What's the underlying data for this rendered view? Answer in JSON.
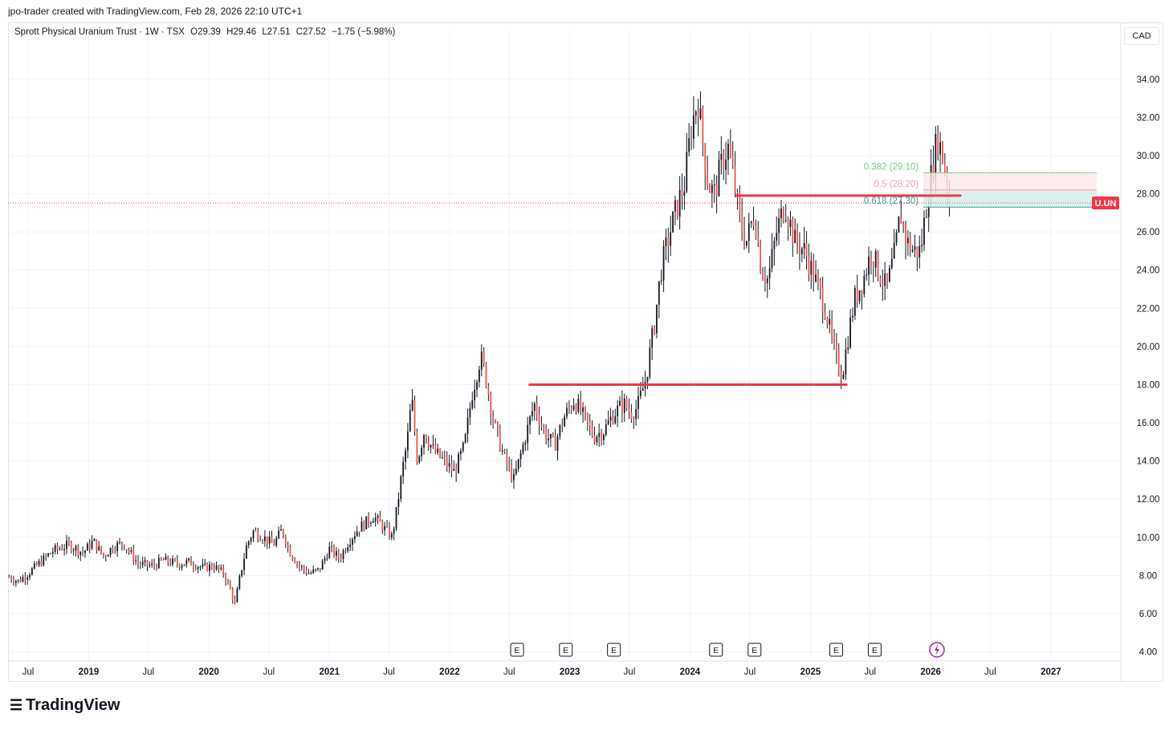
{
  "header": {
    "creator_text": "jpo-trader created with TradingView.com, Feb 28, 2026 22:10 UTC+1"
  },
  "legend": {
    "symbol_title": "Sprott Physical Uranium Trust · 1W · TSX",
    "open": "O29.39",
    "high": "H29.46",
    "low": "L27.51",
    "close": "C27.52",
    "change": "−1.75 (−5.98%)"
  },
  "currency_label": "CAD",
  "price_tag": {
    "label": "U.UN",
    "value": 27.52,
    "color": "#f23645"
  },
  "brand": {
    "name": "TradingView",
    "logo_icon": "tradingview-logo-icon"
  },
  "colors": {
    "up": "#26a69a",
    "down": "#ef5350",
    "candle": "#131722",
    "drawing": "#f23645",
    "grid": "#f0f3fa"
  },
  "chart_data": {
    "type": "candlestick",
    "interval": "1W",
    "y_axis": {
      "ticks": [
        4,
        6,
        8,
        10,
        12,
        14,
        16,
        18,
        20,
        22,
        24,
        26,
        28,
        30,
        32,
        34
      ],
      "range": [
        3.6,
        35.8
      ],
      "position": "right"
    },
    "x_axis": {
      "range": [
        "2018-05-01",
        "2027-07-30"
      ],
      "ticks": [
        {
          "label": "Jul",
          "date": "2018-07-01"
        },
        {
          "label": "2019",
          "date": "2019-01-01"
        },
        {
          "label": "Jul",
          "date": "2019-07-01"
        },
        {
          "label": "2020",
          "date": "2020-01-01"
        },
        {
          "label": "Jul",
          "date": "2020-07-01"
        },
        {
          "label": "2021",
          "date": "2021-01-01"
        },
        {
          "label": "Jul",
          "date": "2021-07-01"
        },
        {
          "label": "2022",
          "date": "2022-01-01"
        },
        {
          "label": "Jul",
          "date": "2022-07-01"
        },
        {
          "label": "2023",
          "date": "2023-01-01"
        },
        {
          "label": "Jul",
          "date": "2023-07-01"
        },
        {
          "label": "2024",
          "date": "2024-01-01"
        },
        {
          "label": "Jul",
          "date": "2024-07-01"
        },
        {
          "label": "2025",
          "date": "2025-01-01"
        },
        {
          "label": "Jul",
          "date": "2025-07-01"
        },
        {
          "label": "2026",
          "date": "2026-01-01"
        },
        {
          "label": "Jul",
          "date": "2026-07-01"
        },
        {
          "label": "2027",
          "date": "2027-01-01"
        }
      ]
    },
    "grid": true,
    "price_path": [
      [
        "2018-05-04",
        7.9
      ],
      [
        "2018-06-01",
        7.7
      ],
      [
        "2018-07-01",
        8.1
      ],
      [
        "2018-08-01",
        8.6
      ],
      [
        "2018-09-15",
        9.3
      ],
      [
        "2018-11-01",
        9.6
      ],
      [
        "2018-12-15",
        9.2
      ],
      [
        "2019-01-15",
        9.8
      ],
      [
        "2019-02-15",
        9.0
      ],
      [
        "2019-03-15",
        9.5
      ],
      [
        "2019-04-15",
        9.7
      ],
      [
        "2019-06-01",
        8.6
      ],
      [
        "2019-07-15",
        8.5
      ],
      [
        "2019-08-15",
        8.8
      ],
      [
        "2019-10-01",
        8.6
      ],
      [
        "2019-11-01",
        8.7
      ],
      [
        "2019-12-15",
        8.4
      ],
      [
        "2020-01-15",
        8.5
      ],
      [
        "2020-02-15",
        8.1
      ],
      [
        "2020-03-05",
        7.3
      ],
      [
        "2020-03-20",
        6.5
      ],
      [
        "2020-04-05",
        8.0
      ],
      [
        "2020-04-25",
        9.6
      ],
      [
        "2020-05-15",
        10.3
      ],
      [
        "2020-06-15",
        10.0
      ],
      [
        "2020-07-15",
        9.6
      ],
      [
        "2020-08-10",
        10.4
      ],
      [
        "2020-09-01",
        9.3
      ],
      [
        "2020-10-01",
        8.5
      ],
      [
        "2020-11-01",
        8.1
      ],
      [
        "2020-12-01",
        8.3
      ],
      [
        "2021-01-01",
        9.4
      ],
      [
        "2021-02-01",
        8.9
      ],
      [
        "2021-03-01",
        9.8
      ],
      [
        "2021-04-01",
        10.5
      ],
      [
        "2021-05-15",
        11.1
      ],
      [
        "2021-06-15",
        10.5
      ],
      [
        "2021-07-10",
        10.0
      ],
      [
        "2021-07-25",
        11.5
      ],
      [
        "2021-08-10",
        13.5
      ],
      [
        "2021-08-25",
        15.0
      ],
      [
        "2021-09-08",
        17.3
      ],
      [
        "2021-09-25",
        14.0
      ],
      [
        "2021-10-15",
        15.5
      ],
      [
        "2021-11-15",
        14.5
      ],
      [
        "2021-12-15",
        14.0
      ],
      [
        "2022-01-15",
        13.4
      ],
      [
        "2022-02-15",
        14.8
      ],
      [
        "2022-03-10",
        17.5
      ],
      [
        "2022-04-05",
        19.5
      ],
      [
        "2022-04-20",
        18.5
      ],
      [
        "2022-05-15",
        16.0
      ],
      [
        "2022-06-15",
        14.2
      ],
      [
        "2022-07-15",
        13.0
      ],
      [
        "2022-08-15",
        15.0
      ],
      [
        "2022-09-15",
        17.0
      ],
      [
        "2022-10-15",
        15.5
      ],
      [
        "2022-11-15",
        14.8
      ],
      [
        "2022-12-15",
        16.3
      ],
      [
        "2023-01-15",
        17.2
      ],
      [
        "2023-02-15",
        16.2
      ],
      [
        "2023-03-15",
        15.3
      ],
      [
        "2023-04-15",
        15.6
      ],
      [
        "2023-05-15",
        16.5
      ],
      [
        "2023-06-15",
        17.0
      ],
      [
        "2023-07-05",
        16.5
      ],
      [
        "2023-07-25",
        16.8
      ],
      [
        "2023-08-20",
        18.3
      ],
      [
        "2023-09-15",
        21.2
      ],
      [
        "2023-10-05",
        24.0
      ],
      [
        "2023-10-25",
        25.5
      ],
      [
        "2023-11-20",
        27.2
      ],
      [
        "2023-12-15",
        28.5
      ],
      [
        "2024-01-05",
        31.5
      ],
      [
        "2024-01-25",
        33.0
      ],
      [
        "2024-02-10",
        30.5
      ],
      [
        "2024-02-25",
        28.5
      ],
      [
        "2024-03-15",
        28.0
      ],
      [
        "2024-04-05",
        29.5
      ],
      [
        "2024-04-25",
        30.5
      ],
      [
        "2024-05-15",
        28.5
      ],
      [
        "2024-06-01",
        26.5
      ],
      [
        "2024-06-20",
        25.5
      ],
      [
        "2024-07-15",
        27.0
      ],
      [
        "2024-08-05",
        24.0
      ],
      [
        "2024-08-25",
        23.5
      ],
      [
        "2024-09-20",
        26.0
      ],
      [
        "2024-10-15",
        27.5
      ],
      [
        "2024-11-15",
        25.5
      ],
      [
        "2024-12-15",
        25.0
      ],
      [
        "2025-01-15",
        23.5
      ],
      [
        "2025-02-15",
        22.0
      ],
      [
        "2025-03-10",
        20.0
      ],
      [
        "2025-03-25",
        19.0
      ],
      [
        "2025-04-08",
        18.6
      ],
      [
        "2025-04-25",
        20.5
      ],
      [
        "2025-05-15",
        22.5
      ],
      [
        "2025-06-10",
        23.5
      ],
      [
        "2025-07-05",
        25.0
      ],
      [
        "2025-07-25",
        24.0
      ],
      [
        "2025-08-20",
        23.0
      ],
      [
        "2025-09-15",
        25.0
      ],
      [
        "2025-10-01",
        27.0
      ],
      [
        "2025-10-20",
        25.5
      ],
      [
        "2025-11-10",
        25.0
      ],
      [
        "2025-12-01",
        25.0
      ],
      [
        "2025-12-20",
        27.5
      ],
      [
        "2026-01-10",
        29.8
      ],
      [
        "2026-01-22",
        31.0
      ],
      [
        "2026-02-05",
        30.0
      ],
      [
        "2026-02-18",
        29.0
      ],
      [
        "2026-02-27",
        27.52
      ]
    ],
    "drawings": [
      {
        "type": "hline",
        "price": 18.0,
        "from": "2022-09-01",
        "to": "2025-04-20",
        "color": "#f23645"
      },
      {
        "type": "hline",
        "price": 27.9,
        "from": "2024-05-20",
        "to": "2026-04-01",
        "color": "#f23645"
      }
    ],
    "fib_levels": [
      {
        "label": "0.382 (29.10)",
        "price": 29.1,
        "color": "#81c784"
      },
      {
        "label": "0.5 (28.20)",
        "price": 28.2,
        "color": "#f7a1b0"
      },
      {
        "label": "0.618 (27.30)",
        "price": 27.3,
        "color": "#26a69a"
      }
    ],
    "events": {
      "earnings_label": "E",
      "earnings_dates": [
        "2022-07-25",
        "2022-12-20",
        "2023-05-15",
        "2024-03-20",
        "2024-07-15",
        "2025-03-20",
        "2025-07-15"
      ],
      "flash_date": "2026-01-20"
    },
    "last_price": 27.52
  }
}
